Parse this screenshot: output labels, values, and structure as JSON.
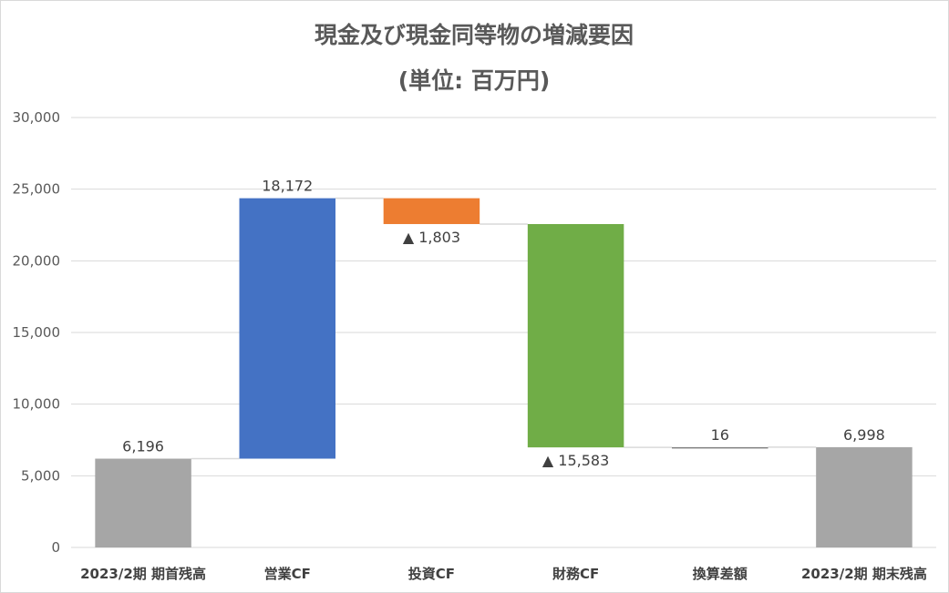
{
  "chart_data": {
    "type": "waterfall",
    "title": "現金及び現金同等物の増減要因",
    "subtitle": "(単位: 百万円)",
    "categories": [
      "2023/2期 期首残高",
      "営業CF",
      "投資CF",
      "財務CF",
      "換算差額",
      "2023/2期 期末残高"
    ],
    "values": [
      6196,
      18172,
      -1803,
      -15583,
      16,
      6998
    ],
    "kinds": [
      "total",
      "increase",
      "decrease",
      "decrease",
      "increase",
      "total"
    ],
    "data_labels": [
      "6,196",
      "18,172",
      "▲ 1,803",
      "▲ 15,583",
      "16",
      "6,998"
    ],
    "ylim": [
      0,
      30000
    ],
    "yticks": [
      0,
      5000,
      10000,
      15000,
      20000,
      25000,
      30000
    ],
    "ytick_labels": [
      "0",
      "5,000",
      "10,000",
      "15,000",
      "20,000",
      "25,000",
      "30,000"
    ],
    "grid": true,
    "legend": "none",
    "colors": {
      "total": "#a6a6a6",
      "営業CF": "#4472c4",
      "投資CF": "#ed7d31",
      "財務CF": "#70ad47",
      "換算差額": "#7f7f7f"
    }
  }
}
